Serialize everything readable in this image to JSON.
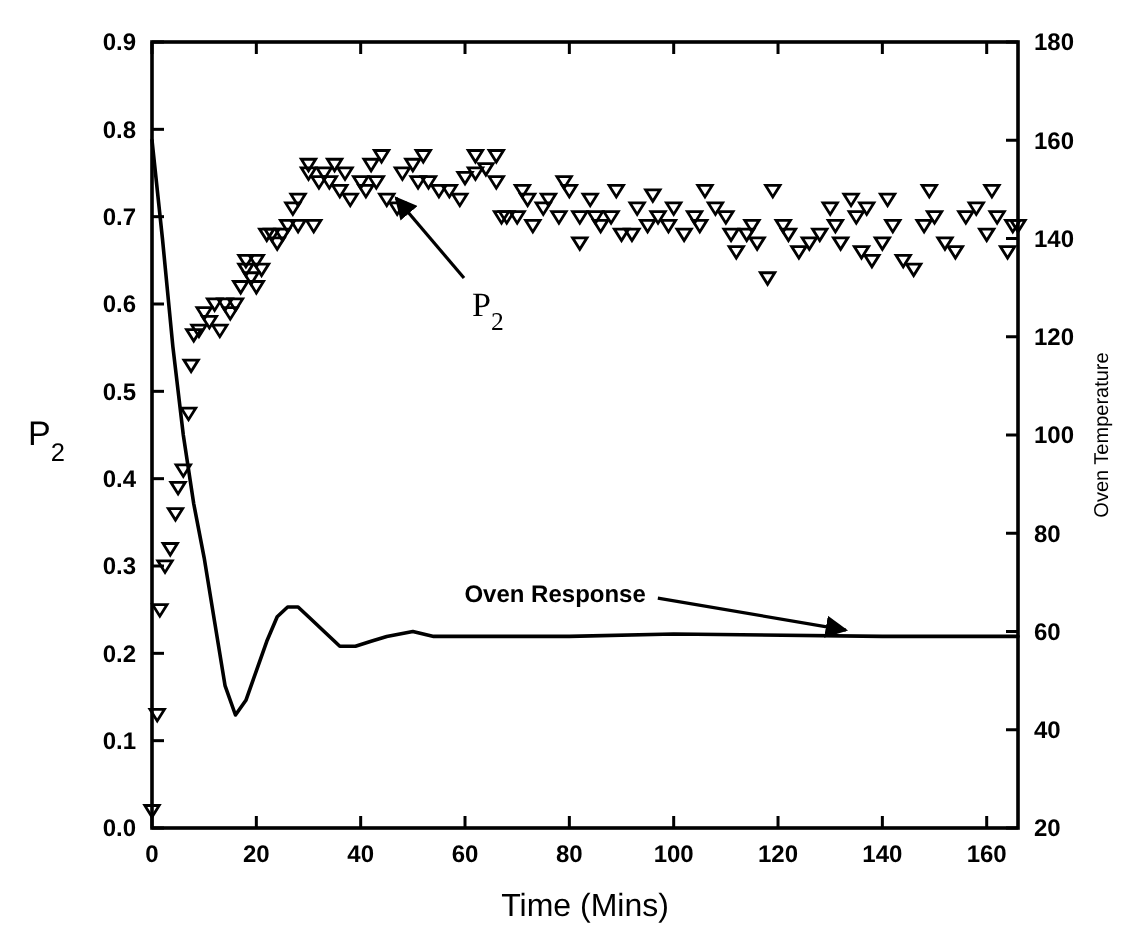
{
  "chart_data": {
    "type": "scatter",
    "xlabel": "Time (Mins)",
    "ylabel": "P$_{2}$",
    "y2label": "Oven Temperature",
    "xlim": [
      0,
      166
    ],
    "xticks": [
      0,
      20,
      40,
      60,
      80,
      100,
      120,
      140,
      160
    ],
    "ylim": [
      0,
      0.9
    ],
    "yticks": [
      {
        "value": 0,
        "label": "0.0"
      },
      0.1,
      0.2,
      0.3,
      0.4,
      0.5,
      0.6,
      0.7,
      0.8,
      0.9
    ],
    "y2lim": [
      20,
      180
    ],
    "y2ticks": [
      20,
      40,
      60,
      80,
      100,
      120,
      140,
      160,
      180
    ],
    "grid": false,
    "annotations": [
      "P$_{2}$",
      {
        "text": "Oven Response",
        "x": 133,
        "y": 0.222
      }
    ],
    "series": [
      {
        "color": "#000000",
        "marker": "triangle",
        "axis": "y",
        "x": [
          0,
          1,
          1.5,
          2.5,
          3.5,
          4.5,
          5,
          6,
          7,
          7.5,
          8,
          9,
          10,
          11,
          12,
          13,
          14,
          15,
          16,
          17,
          18,
          18,
          19,
          20,
          20,
          21,
          22,
          23,
          24,
          25,
          26,
          27,
          28,
          28,
          31,
          30,
          30,
          32,
          33,
          35,
          34,
          36,
          37,
          38,
          40,
          41,
          42,
          43,
          44,
          45,
          47,
          48,
          50,
          51,
          52,
          53,
          55,
          57,
          59,
          60,
          62,
          62,
          64,
          66,
          66,
          67,
          68,
          70,
          71,
          72,
          73,
          75,
          76,
          78,
          79,
          80,
          82,
          82,
          84,
          85,
          86,
          88,
          89,
          90,
          92,
          93,
          95,
          96,
          97,
          99,
          100,
          102,
          104,
          105,
          106,
          108,
          110,
          111,
          112,
          114,
          115,
          116,
          118,
          119,
          121,
          122,
          124,
          126,
          128,
          130,
          131,
          132,
          134,
          135,
          136,
          137,
          138,
          140,
          141,
          142,
          144,
          146,
          148,
          149,
          150,
          152,
          154,
          156,
          158,
          160,
          161,
          162,
          164,
          165,
          166
        ],
        "values": [
          0.02,
          0.13,
          0.25,
          0.3,
          0.32,
          0.36,
          0.39,
          0.41,
          0.475,
          0.53,
          0.565,
          0.57,
          0.59,
          0.58,
          0.6,
          0.57,
          0.6,
          0.59,
          0.6,
          0.62,
          0.64,
          0.65,
          0.63,
          0.62,
          0.65,
          0.64,
          0.68,
          0.68,
          0.67,
          0.68,
          0.69,
          0.71,
          0.72,
          0.69,
          0.69,
          0.75,
          0.76,
          0.74,
          0.75,
          0.76,
          0.74,
          0.73,
          0.75,
          0.72,
          0.74,
          0.73,
          0.76,
          0.74,
          0.77,
          0.72,
          0.71,
          0.75,
          0.76,
          0.74,
          0.77,
          0.74,
          0.73,
          0.73,
          0.72,
          0.745,
          0.75,
          0.77,
          0.755,
          0.77,
          0.74,
          0.7,
          0.7,
          0.7,
          0.73,
          0.72,
          0.69,
          0.71,
          0.72,
          0.7,
          0.74,
          0.73,
          0.7,
          0.67,
          0.72,
          0.7,
          0.69,
          0.7,
          0.73,
          0.68,
          0.68,
          0.71,
          0.69,
          0.725,
          0.7,
          0.69,
          0.71,
          0.68,
          0.7,
          0.69,
          0.73,
          0.71,
          0.7,
          0.68,
          0.66,
          0.68,
          0.69,
          0.67,
          0.63,
          0.73,
          0.69,
          0.68,
          0.66,
          0.67,
          0.68,
          0.71,
          0.69,
          0.67,
          0.72,
          0.7,
          0.66,
          0.71,
          0.65,
          0.67,
          0.72,
          0.69,
          0.65,
          0.64,
          0.69,
          0.73,
          0.7,
          0.67,
          0.66,
          0.7,
          0.71,
          0.68,
          0.73,
          0.7,
          0.66,
          0.69,
          0.69
        ]
      },
      {
        "type": "line",
        "color": "#000000",
        "marker": "none",
        "line_style": "solid",
        "axis": "y2",
        "x": [
          0,
          2,
          4,
          6,
          8,
          10,
          12,
          14,
          16,
          18,
          20,
          22,
          24,
          26,
          28,
          30,
          33,
          36,
          39,
          42,
          45,
          50,
          54,
          60,
          80,
          100,
          140,
          166
        ],
        "values": [
          160,
          140,
          118,
          100,
          86,
          75,
          62,
          49,
          43,
          46,
          52,
          58,
          63,
          65,
          65,
          63,
          60,
          57,
          57,
          58,
          59,
          60,
          59,
          59,
          59,
          59.5,
          59,
          59
        ]
      }
    ]
  }
}
